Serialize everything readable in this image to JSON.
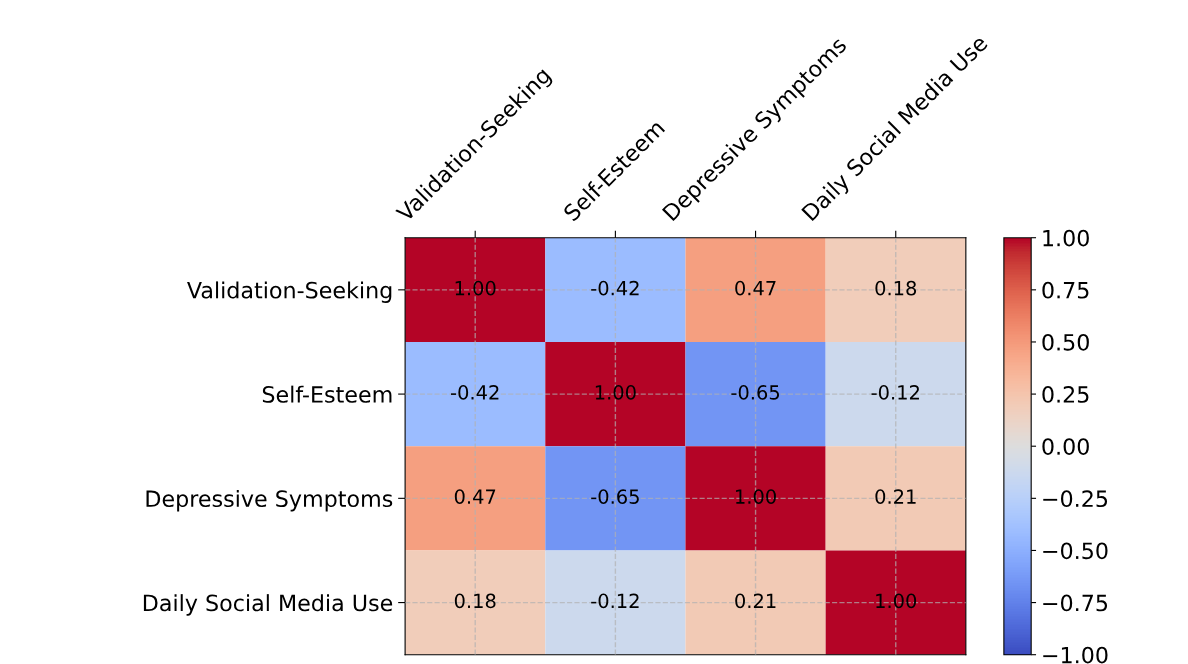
{
  "chart_data": {
    "type": "heatmap",
    "categories": [
      "Validation-Seeking",
      "Self-Esteem",
      "Depressive Symptoms",
      "Daily Social Media Use"
    ],
    "y_categories": [
      "Validation-Seeking",
      "Self-Esteem",
      "Depressive Symptoms",
      "Daily Social Media Use"
    ],
    "cells": [
      [
        1.0,
        -0.42,
        0.47,
        0.18
      ],
      [
        -0.42,
        1.0,
        -0.65,
        -0.12
      ],
      [
        0.47,
        -0.65,
        1.0,
        0.21
      ],
      [
        0.18,
        -0.12,
        0.21,
        1.0
      ]
    ],
    "cell_labels": [
      [
        "1.00",
        "-0.42",
        "0.47",
        "0.18"
      ],
      [
        "-0.42",
        "1.00",
        "-0.65",
        "-0.12"
      ],
      [
        "0.47",
        "-0.65",
        "1.00",
        "0.21"
      ],
      [
        "0.18",
        "-0.12",
        "0.21",
        "1.00"
      ]
    ],
    "clim": [
      -1.0,
      1.0
    ],
    "cticks": [
      {
        "value": -1.0,
        "label": "−1.00"
      },
      {
        "value": -0.75,
        "label": "−0.75"
      },
      {
        "value": -0.5,
        "label": "−0.50"
      },
      {
        "value": -0.25,
        "label": "−0.25"
      },
      {
        "value": 0.0,
        "label": "0.00"
      },
      {
        "value": 0.25,
        "label": "0.25"
      },
      {
        "value": 0.5,
        "label": "0.50"
      },
      {
        "value": 0.75,
        "label": "0.75"
      },
      {
        "value": 1.0,
        "label": "1.00"
      }
    ],
    "grid": true
  }
}
